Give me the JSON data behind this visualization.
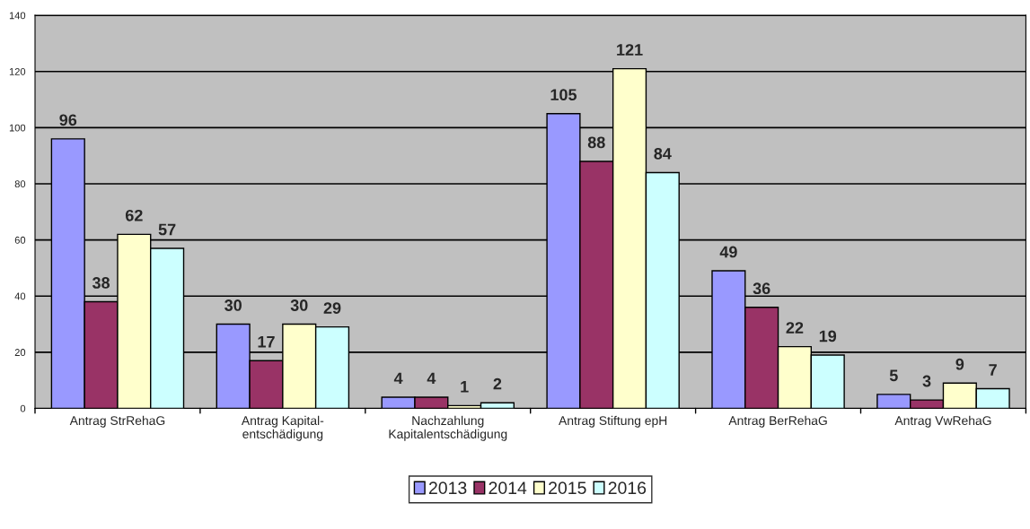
{
  "chart_data": {
    "type": "bar",
    "categories": [
      "Antrag StrRehaG",
      "Antrag Kapital-\nentschädigung",
      "Nachzahlung\nKapitalentschädigung",
      "Antrag Stiftung epH",
      "Antrag BerRehaG",
      "Antrag VwRehaG"
    ],
    "series": [
      {
        "name": "2013",
        "color": "#9999ff",
        "values": [
          96,
          30,
          4,
          105,
          49,
          5
        ]
      },
      {
        "name": "2014",
        "color": "#993366",
        "values": [
          38,
          17,
          4,
          88,
          36,
          3
        ]
      },
      {
        "name": "2015",
        "color": "#ffffcc",
        "values": [
          62,
          30,
          1,
          121,
          22,
          9
        ]
      },
      {
        "name": "2016",
        "color": "#ccffff",
        "values": [
          57,
          29,
          2,
          84,
          19,
          7
        ]
      }
    ],
    "ylim": [
      0,
      140
    ],
    "yticks": [
      0,
      20,
      40,
      60,
      80,
      100,
      120,
      140
    ],
    "grid": "y",
    "legend": "bottom",
    "data_labels": true
  }
}
